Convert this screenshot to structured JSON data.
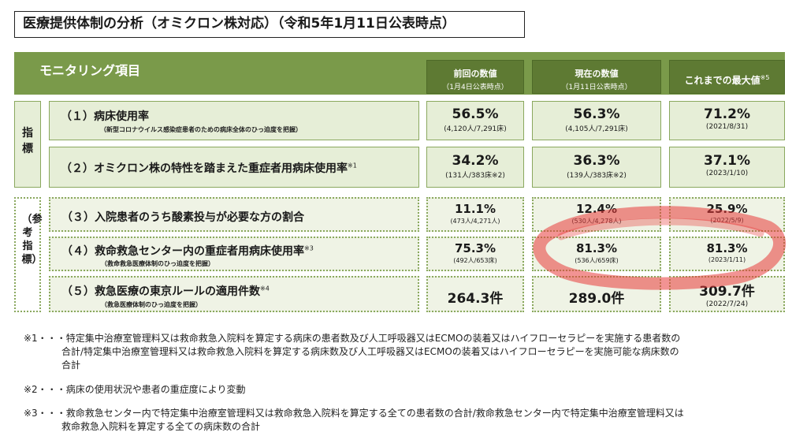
{
  "title": "医療提供体制の分析（オミクロン株対応）（令和5年1月11日公表時点）",
  "header": {
    "label": "モニタリング項目",
    "col_prev": {
      "line1": "前回の数値",
      "line2": "（1月4日公表時点）"
    },
    "col_curr": {
      "line1": "現在の数値",
      "line2": "（1月11日公表時点）"
    },
    "col_max": {
      "line1": "これまでの最大値",
      "sup": "※5"
    }
  },
  "side_labels": {
    "indicator": "指標",
    "reference": "（参考指標）"
  },
  "rows": [
    {
      "title": "（１）病床使用率",
      "sup": "",
      "sub": "（新型コロナウイルス感染症患者のための病床全体のひっ迫度を把握）",
      "prev": {
        "value": "56.5%",
        "detail": "(4,120人/7,291床)"
      },
      "curr": {
        "value": "56.3%",
        "detail": "(4,105人/7,291床)"
      },
      "max": {
        "value": "71.2%",
        "detail": "(2021/8/31)"
      }
    },
    {
      "title": "（２）オミクロン株の特性を踏まえた重症者用病床使用率",
      "sup": "※1",
      "sub": "",
      "prev": {
        "value": "34.2%",
        "detail": "(131人/383床※2)"
      },
      "curr": {
        "value": "36.3%",
        "detail": "(139人/383床※2)"
      },
      "max": {
        "value": "37.1%",
        "detail": "(2023/1/10)"
      }
    },
    {
      "title": "（３）入院患者のうち酸素投与が必要な方の割合",
      "sup": "",
      "sub": "",
      "prev": {
        "value": "11.1%",
        "detail": "(473人/4,271人)"
      },
      "curr": {
        "value": "12.4%",
        "detail": "(530人/4,278人)"
      },
      "max": {
        "value": "25.9%",
        "detail": "(2022/5/9)"
      }
    },
    {
      "title": "（４）救命救急センター内の重症者用病床使用率",
      "sup": "※3",
      "sub": "（救命救急医療体制のひっ迫度を把握）",
      "prev": {
        "value": "75.3%",
        "detail": "(492人/653床)"
      },
      "curr": {
        "value": "81.3%",
        "detail": "(536人/659床)"
      },
      "max": {
        "value": "81.3%",
        "detail": "(2023/1/11)"
      }
    },
    {
      "title": "（５）救急医療の東京ルールの適用件数",
      "sup": "※4",
      "sub": "（救急医療体制のひっ迫度を把握）",
      "prev": {
        "value": "264.3件",
        "detail": ""
      },
      "curr": {
        "value": "289.0件",
        "detail": ""
      },
      "max": {
        "value": "309.7件",
        "detail": "(2022/7/24)"
      }
    }
  ],
  "notes": {
    "n1_line1": "※1・・・特定集中治療室管理料又は救命救急入院料を算定する病床の患者数及び人工呼吸器又はECMOの装着又はハイフローセラピーを実施する患者数の",
    "n1_line2": "合計/特定集中治療室管理料又は救命救急入院料を算定する病床数及び人工呼吸器又はECMOの装着又はハイフローセラピーを実施可能な病床数の",
    "n1_line3": "合計",
    "n2": "※2・・・病床の使用状況や患者の重症度により変動",
    "n3_line1": "※3・・・救命救急センター内で特定集中治療室管理料又は救命救急入院料を算定する全ての患者数の合計/救命救急センター内で特定集中治療室管理料又は",
    "n3_line2": "救命救急入院料を算定する全ての病床数の合計"
  },
  "colors": {
    "header_green": "#7a9a4a",
    "header_dark": "#5e7a33",
    "cell_bg": "#e6eed7",
    "border": "#8aa85e",
    "highlight": "#e83a3a"
  }
}
